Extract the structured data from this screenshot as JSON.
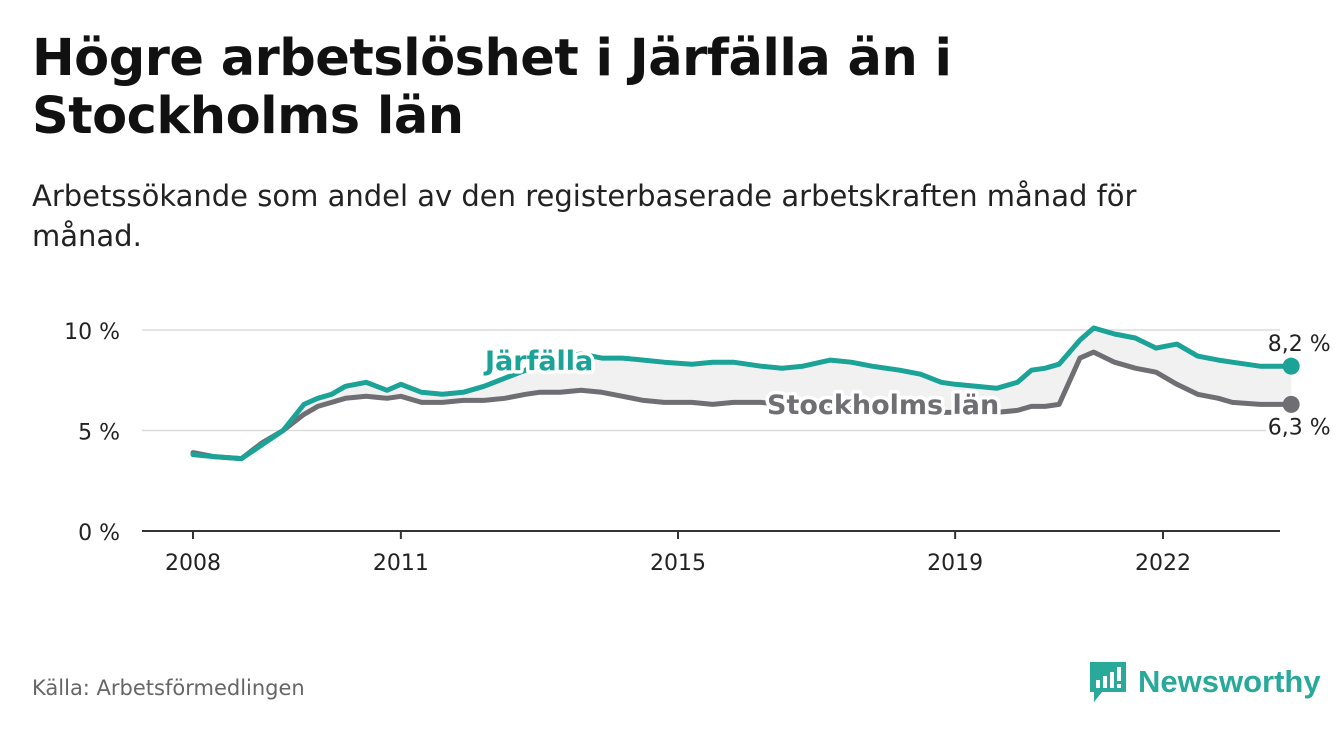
{
  "header": {
    "title": "Högre arbetslöshet i Järfälla än i Stockholms län",
    "subtitle": "Arbetssökande som andel av den registerbaserade arbetskraften månad för månad."
  },
  "footer": {
    "source": "Källa: Arbetsförmedlingen",
    "brand": "Newsworthy"
  },
  "colors": {
    "jarfalla": "#1aa396",
    "stockholm": "#6e6e73",
    "band": "#f1f1f1",
    "grid": "#dcdcdc",
    "axis": "#333333"
  },
  "chart_data": {
    "type": "line",
    "title": "Högre arbetslöshet i Järfälla än i Stockholms län",
    "xlabel": "",
    "ylabel": "",
    "xlim": [
      2008,
      2023.75
    ],
    "ylim": [
      0,
      10
    ],
    "y_ticks": [
      0,
      5,
      10
    ],
    "y_tick_labels": [
      "0 %",
      "5 %",
      "10 %"
    ],
    "x_ticks": [
      2008,
      2011,
      2015,
      2019,
      2022
    ],
    "x_tick_labels": [
      "2008",
      "2011",
      "2015",
      "2019",
      "2022"
    ],
    "grid": true,
    "series": [
      {
        "name": "Järfälla",
        "label": "Järfälla",
        "end_label": "8,2 %",
        "color": "#1aa396",
        "x": [
          2008.0,
          2008.3,
          2008.7,
          2009.0,
          2009.3,
          2009.6,
          2009.8,
          2010.0,
          2010.2,
          2010.5,
          2010.8,
          2011.0,
          2011.3,
          2011.6,
          2011.9,
          2012.2,
          2012.5,
          2012.8,
          2013.0,
          2013.3,
          2013.6,
          2013.9,
          2014.2,
          2014.5,
          2014.8,
          2015.2,
          2015.5,
          2015.8,
          2016.2,
          2016.5,
          2016.8,
          2017.2,
          2017.5,
          2017.8,
          2018.2,
          2018.5,
          2018.8,
          2019.0,
          2019.3,
          2019.6,
          2019.9,
          2020.1,
          2020.3,
          2020.5,
          2020.8,
          2021.0,
          2021.3,
          2021.6,
          2021.9,
          2022.2,
          2022.5,
          2022.8,
          2023.0,
          2023.4,
          2023.85
        ],
        "values": [
          3.8,
          3.7,
          3.6,
          4.3,
          5.0,
          6.3,
          6.6,
          6.8,
          7.2,
          7.4,
          7.0,
          7.3,
          6.9,
          6.8,
          6.9,
          7.2,
          7.6,
          8.0,
          8.4,
          8.7,
          8.8,
          8.6,
          8.6,
          8.5,
          8.4,
          8.3,
          8.4,
          8.4,
          8.2,
          8.1,
          8.2,
          8.5,
          8.4,
          8.2,
          8.0,
          7.8,
          7.4,
          7.3,
          7.2,
          7.1,
          7.4,
          8.0,
          8.1,
          8.3,
          9.5,
          10.1,
          9.8,
          9.6,
          9.1,
          9.3,
          8.7,
          8.5,
          8.4,
          8.2,
          8.2
        ]
      },
      {
        "name": "Stockholms län",
        "label": "Stockholms län",
        "end_label": "6,3 %",
        "color": "#6e6e73",
        "x": [
          2008.0,
          2008.3,
          2008.7,
          2009.0,
          2009.3,
          2009.6,
          2009.8,
          2010.0,
          2010.2,
          2010.5,
          2010.8,
          2011.0,
          2011.3,
          2011.6,
          2011.9,
          2012.2,
          2012.5,
          2012.8,
          2013.0,
          2013.3,
          2013.6,
          2013.9,
          2014.2,
          2014.5,
          2014.8,
          2015.2,
          2015.5,
          2015.8,
          2016.2,
          2016.5,
          2016.8,
          2017.2,
          2017.5,
          2017.8,
          2018.2,
          2018.5,
          2018.8,
          2019.0,
          2019.3,
          2019.6,
          2019.9,
          2020.1,
          2020.3,
          2020.5,
          2020.8,
          2021.0,
          2021.3,
          2021.6,
          2021.9,
          2022.2,
          2022.5,
          2022.8,
          2023.0,
          2023.4,
          2023.85
        ],
        "values": [
          3.9,
          3.7,
          3.6,
          4.4,
          5.0,
          5.8,
          6.2,
          6.4,
          6.6,
          6.7,
          6.6,
          6.7,
          6.4,
          6.4,
          6.5,
          6.5,
          6.6,
          6.8,
          6.9,
          6.9,
          7.0,
          6.9,
          6.7,
          6.5,
          6.4,
          6.4,
          6.3,
          6.4,
          6.4,
          6.3,
          6.2,
          6.1,
          6.1,
          6.0,
          6.0,
          5.9,
          5.9,
          5.9,
          5.9,
          5.9,
          6.0,
          6.2,
          6.2,
          6.3,
          8.6,
          8.9,
          8.4,
          8.1,
          7.9,
          7.3,
          6.8,
          6.6,
          6.4,
          6.3,
          6.3
        ]
      }
    ]
  }
}
